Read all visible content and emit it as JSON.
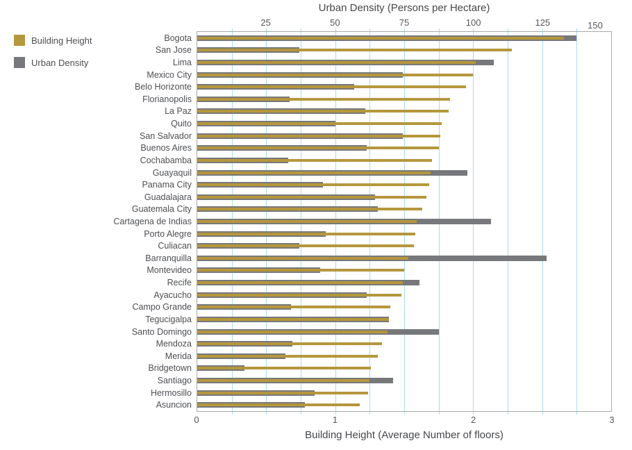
{
  "legend": {
    "items": [
      {
        "label": "Building Height",
        "color": "#b5973d"
      },
      {
        "label": "Urban Density",
        "color": "#77787b"
      }
    ]
  },
  "chart_data": {
    "type": "bar",
    "orientation": "horizontal",
    "title": "",
    "categories": [
      "Bogota",
      "San Jose",
      "Lima",
      "Mexico City",
      "Belo Horizonte",
      "Florianopolis",
      "La Paz",
      "Quito",
      "San Salvador",
      "Buenos Aires",
      "Cochabamba",
      "Guayaquil",
      "Panama City",
      "Guadalajara",
      "Guatemala City",
      "Cartagena de Indias",
      "Porto Alegre",
      "Culiacan",
      "Barranquilla",
      "Montevideo",
      "Recife",
      "Ayacucho",
      "Campo Grande",
      "Tegucigalpa",
      "Santo Domingo",
      "Mendoza",
      "Merida",
      "Bridgetown",
      "Santiago",
      "Hermosillo",
      "Asuncion"
    ],
    "series": [
      {
        "name": "Building Height",
        "axis": "bottom",
        "color": "#b5973d",
        "values": [
          2.66,
          2.28,
          2.02,
          2.0,
          1.95,
          1.83,
          1.82,
          1.77,
          1.76,
          1.75,
          1.7,
          1.69,
          1.68,
          1.66,
          1.63,
          1.59,
          1.58,
          1.57,
          1.53,
          1.5,
          1.49,
          1.48,
          1.4,
          1.39,
          1.38,
          1.34,
          1.31,
          1.26,
          1.25,
          1.24,
          1.18
        ]
      },
      {
        "name": "Urban Density",
        "axis": "top",
        "color": "#77787b",
        "values": [
          137.5,
          37,
          107.5,
          74.5,
          57,
          33.5,
          61,
          50,
          74.5,
          61.5,
          33,
          98,
          45.5,
          64.5,
          65.5,
          106.5,
          46.5,
          37,
          126.5,
          44.5,
          80.5,
          61.5,
          34,
          69.5,
          87.5,
          34.5,
          32,
          17,
          71,
          42.5,
          39
        ]
      }
    ],
    "top_axis": {
      "title": "Urban Density (Persons per Hectare)",
      "min": 0,
      "max": 150,
      "ticks": [
        25,
        50,
        75,
        100,
        125,
        150
      ]
    },
    "bottom_axis": {
      "title": "Building Height (Average Number of floors)",
      "min": 0,
      "max": 3,
      "ticks": [
        0,
        1,
        2,
        3
      ]
    },
    "grid": {
      "on": true,
      "color": "#a8dcec",
      "interval_top_units": 12.5
    },
    "frame_color": "#a9a9a9",
    "text_color": "#4d4f53",
    "legend_position": "top-left"
  }
}
